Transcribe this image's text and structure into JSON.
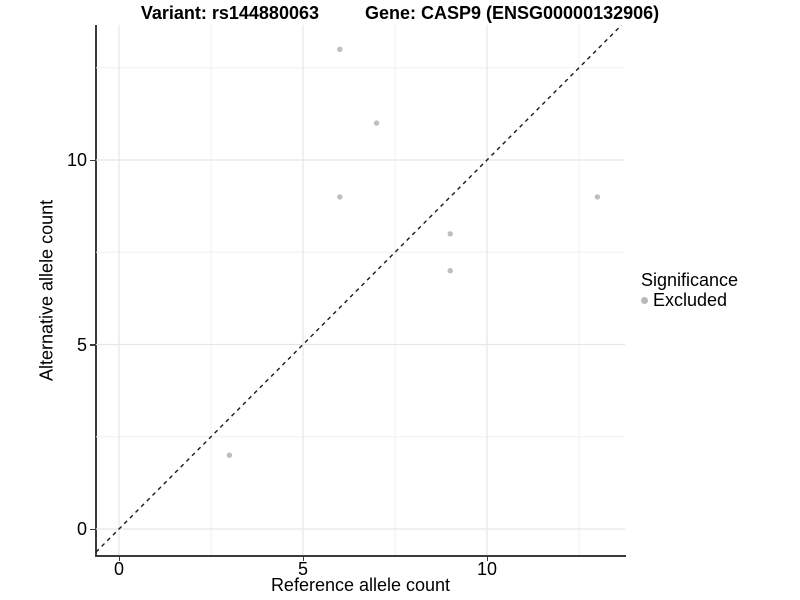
{
  "title": {
    "variant": "Variant: rs144880063",
    "gene": "Gene: CASP9 (ENSG00000132906)"
  },
  "x_axis": {
    "label": "Reference allele count"
  },
  "y_axis": {
    "label": "Alternative allele count"
  },
  "legend": {
    "title": "Significance",
    "items": [
      {
        "label": "Excluded",
        "color": "#b9b9b9"
      }
    ]
  },
  "chart_data": {
    "type": "scatter",
    "title": "Variant: rs144880063    Gene: CASP9 (ENSG00000132906)",
    "xlabel": "Reference allele count",
    "ylabel": "Alternative allele count",
    "xlim": [
      -0.65,
      13.75
    ],
    "ylim": [
      -0.72,
      13.66
    ],
    "x_ticks": [
      0,
      5,
      10
    ],
    "y_ticks": [
      0,
      5,
      10
    ],
    "x_minor_ticks": [
      2.5,
      7.5,
      12.5
    ],
    "y_minor_ticks": [
      2.5,
      7.5,
      12.5
    ],
    "grid": true,
    "legend_position": "right",
    "series": [
      {
        "name": "Excluded",
        "color": "#bebebe",
        "points": [
          [
            3,
            2
          ],
          [
            6,
            9
          ],
          [
            6,
            13
          ],
          [
            7,
            11
          ],
          [
            9,
            7
          ],
          [
            9,
            8
          ],
          [
            13,
            9
          ]
        ]
      }
    ],
    "reference_line": {
      "type": "identity y=x",
      "style": "dashed",
      "color": "#1a1a1a"
    }
  },
  "colors": {
    "background": "#ffffff",
    "grid_major": "#e6e6e6",
    "grid_minor": "#f0f0f0",
    "axis": "#3a3a3a",
    "text": "#000000"
  }
}
